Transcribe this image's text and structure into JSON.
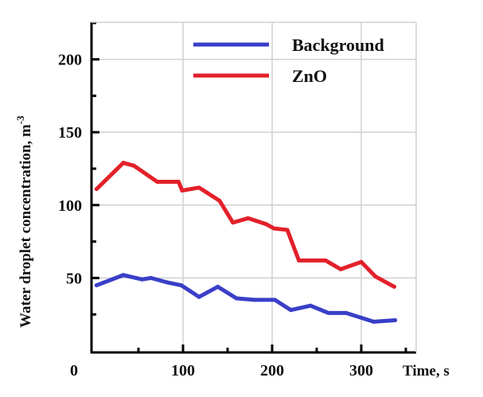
{
  "chart_data": {
    "type": "line",
    "xlabel": "Time, s",
    "ylabel": "Water droplet concentration, m",
    "ylabel_superscript": "-3",
    "xlim": [
      0,
      362
    ],
    "ylim": [
      0,
      225
    ],
    "origin_label": "0",
    "xticks": [
      100,
      200,
      300
    ],
    "yticks": [
      50,
      100,
      150,
      200
    ],
    "grid": true,
    "legend_position": "top-right",
    "series": [
      {
        "name": "Background",
        "color": "#3a3fc8",
        "x": [
          3,
          33,
          54,
          64,
          82,
          98,
          118,
          139,
          160,
          180,
          203,
          221,
          243,
          263,
          283,
          314,
          338
        ],
        "y": [
          45,
          52,
          49,
          50,
          47,
          45,
          37,
          44,
          36,
          35,
          35,
          28,
          31,
          26,
          26,
          20,
          21
        ]
      },
      {
        "name": "ZnO",
        "color": "#e3202a",
        "x": [
          3,
          33,
          45,
          71,
          95,
          99,
          118,
          141,
          156,
          173,
          193,
          202,
          217,
          230,
          260,
          277,
          300,
          316,
          337
        ],
        "y": [
          111,
          129,
          127,
          116,
          116,
          110,
          112,
          103,
          88,
          91,
          87,
          84,
          83,
          62,
          62,
          56,
          61,
          51,
          44
        ]
      }
    ]
  }
}
